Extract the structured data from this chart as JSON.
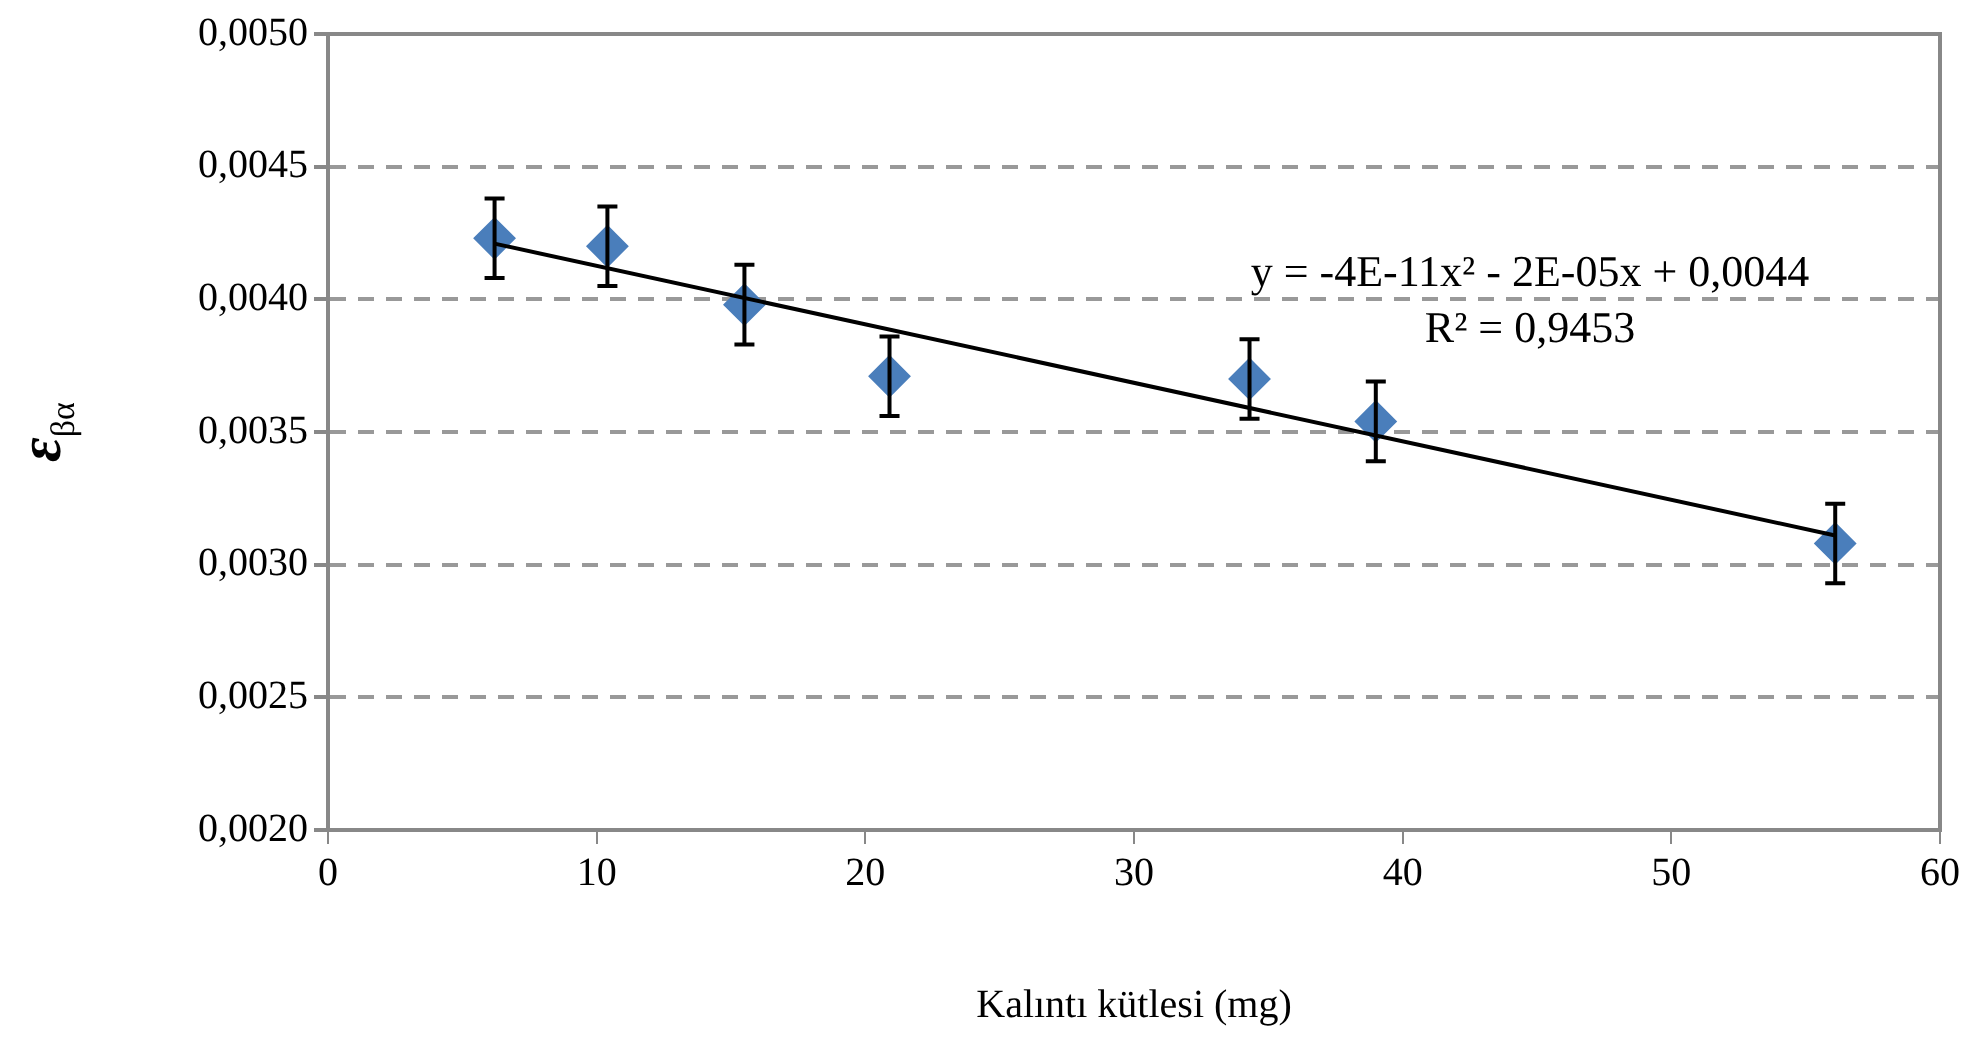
{
  "chart_data": {
    "type": "scatter",
    "xlabel": "Kalıntı kütlesi (mg)",
    "ylabel": "ε$_{βα}$",
    "annotations": [
      "y = -4E-11x² - 2E-05x + 0,0044",
      "R² = 0,9453"
    ],
    "series": [
      {
        "color": "#4a7ebb",
        "marker": "diamond",
        "x": [
          6.2,
          10.4,
          15.5,
          20.9,
          34.3,
          39.0,
          56.1
        ],
        "values": [
          0.00423,
          0.0042,
          0.00398,
          0.00371,
          0.0037,
          0.00354,
          0.00308
        ],
        "errors": [
          0.00015,
          0.00015,
          0.00015,
          0.00015,
          0.00015,
          0.00015,
          0.00015
        ]
      },
      {
        "type": "line",
        "color": "#000000",
        "marker": "none",
        "x": [
          6.2,
          56.1
        ],
        "values": [
          0.00421,
          0.00311
        ]
      }
    ],
    "xlim": [
      0,
      60
    ],
    "xticks": [
      0,
      10,
      20,
      30,
      40,
      50,
      60
    ],
    "ylim": [
      0.002,
      0.005
    ],
    "yticks": [
      {
        "value": 0.002,
        "label": "0,0020"
      },
      {
        "value": 0.0025,
        "label": "0,0025"
      },
      {
        "value": 0.003,
        "label": "0,0030"
      },
      {
        "value": 0.0035,
        "label": "0,0035"
      },
      {
        "value": 0.004,
        "label": "0,0040"
      },
      {
        "value": 0.0045,
        "label": "0,0045"
      },
      {
        "value": 0.005,
        "label": "0,0050"
      }
    ],
    "grid": "y",
    "legend": false
  }
}
